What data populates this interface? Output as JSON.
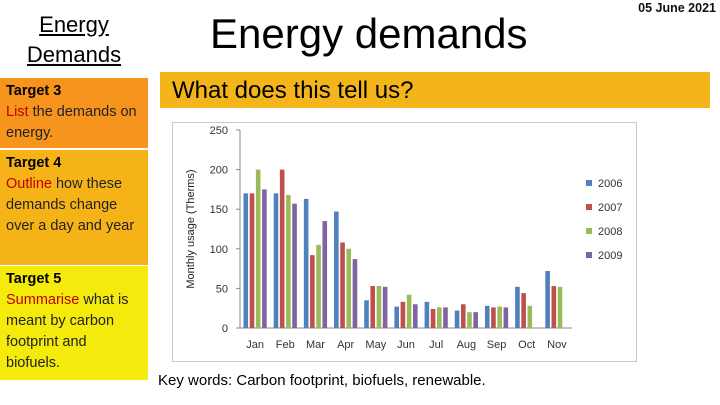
{
  "sidebar": {
    "title": "Energy Demands",
    "targets": [
      {
        "heading": "Target 3",
        "verb": "List",
        "rest": " the demands on energy."
      },
      {
        "heading": "Target 4",
        "verb": "Outline",
        "rest": " how these demands change over a day and year"
      },
      {
        "heading": "Target 5",
        "verb": "Summarise",
        "rest": " what is meant by carbon footprint and biofuels."
      }
    ]
  },
  "header": {
    "title": "Energy demands",
    "date": "05 June 2021"
  },
  "question": "What does this tell us?",
  "keywords": "Key words: Carbon footprint, biofuels, renewable.",
  "colors": {
    "target3": "#f7941d",
    "target4": "#f6b318",
    "target5": "#f4ea0c",
    "question_bar": "#f4b51a"
  },
  "chart_data": {
    "type": "bar",
    "ylabel": "Monthly usage (Therms)",
    "ylim": [
      0,
      250
    ],
    "yticks": [
      0,
      50,
      100,
      150,
      200,
      250
    ],
    "categories": [
      "Jan",
      "Feb",
      "Mar",
      "Apr",
      "May",
      "Jun",
      "Jul",
      "Aug",
      "Sep",
      "Oct",
      "Nov"
    ],
    "legend_position": "right",
    "grid": false,
    "series": [
      {
        "name": "2006",
        "color": "#4f81bd",
        "values": [
          170,
          170,
          163,
          147,
          35,
          27,
          33,
          22,
          28,
          52,
          72
        ]
      },
      {
        "name": "2007",
        "color": "#c0504d",
        "values": [
          170,
          200,
          92,
          108,
          53,
          33,
          24,
          30,
          26,
          44,
          53
        ]
      },
      {
        "name": "2008",
        "color": "#9bbb59",
        "values": [
          200,
          168,
          105,
          100,
          53,
          42,
          26,
          20,
          27,
          28,
          52
        ]
      },
      {
        "name": "2009",
        "color": "#8064a2",
        "values": [
          175,
          157,
          135,
          87,
          52,
          30,
          26,
          20,
          26,
          null,
          null
        ]
      }
    ]
  }
}
